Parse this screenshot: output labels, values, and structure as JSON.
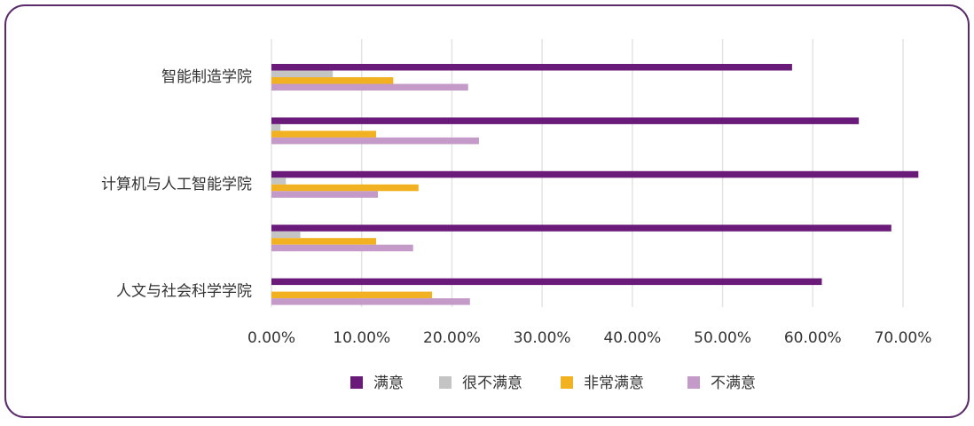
{
  "chart_data": {
    "type": "bar",
    "orientation": "horizontal",
    "categories": [
      "智能制造学院",
      null,
      "计算机与人工智能学院",
      null,
      "人文与社会科学学院"
    ],
    "series": [
      {
        "name": "满意",
        "color": "#6a1b7a",
        "values": [
          57.7,
          65.1,
          71.7,
          68.7,
          61.0
        ]
      },
      {
        "name": "很不满意",
        "color": "#c4c4c4",
        "values": [
          6.8,
          1.0,
          1.6,
          3.2,
          0
        ]
      },
      {
        "name": "非常满意",
        "color": "#f2b120",
        "values": [
          13.5,
          11.6,
          16.3,
          11.6,
          17.8
        ]
      },
      {
        "name": "不满意",
        "color": "#c49bc8",
        "values": [
          21.8,
          23.0,
          11.8,
          15.7,
          22.0
        ]
      }
    ],
    "xlim": [
      0,
      70
    ],
    "xticks": [
      {
        "value": 0,
        "label": "0.00%"
      },
      {
        "value": 10,
        "label": "10.00%"
      },
      {
        "value": 20,
        "label": "20.00%"
      },
      {
        "value": 30,
        "label": "30.00%"
      },
      {
        "value": 40,
        "label": "40.00%"
      },
      {
        "value": 50,
        "label": "50.00%"
      },
      {
        "value": 60,
        "label": "60.00%"
      },
      {
        "value": 70,
        "label": "70.00%"
      }
    ],
    "grid": true,
    "legend": "bottom"
  }
}
